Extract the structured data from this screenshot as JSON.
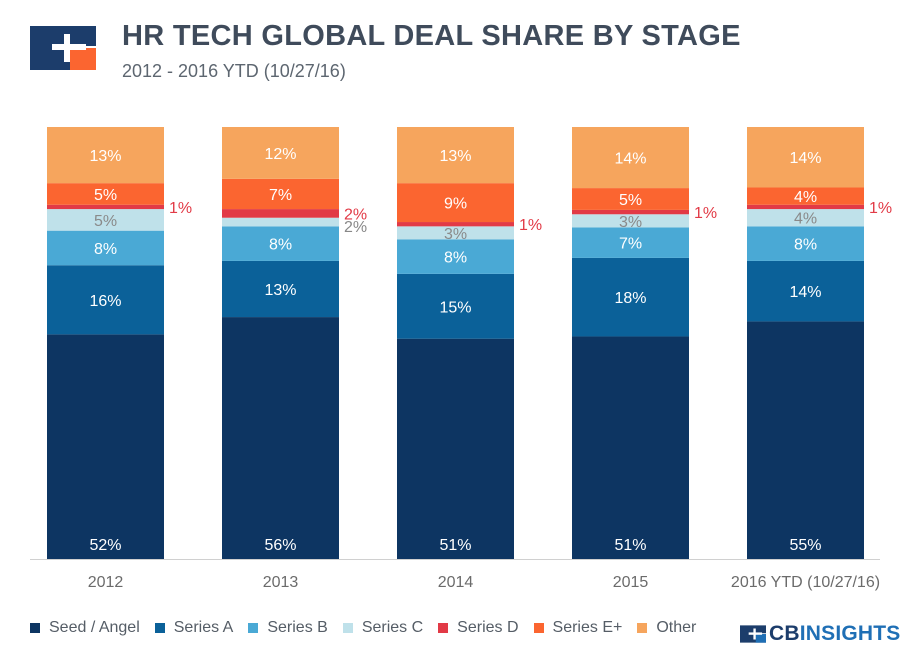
{
  "header": {
    "title": "HR TECH GLOBAL DEAL SHARE BY STAGE",
    "subtitle": "2012 - 2016 YTD (10/27/16)"
  },
  "brand": {
    "prefix": "CB",
    "suffix": "INSIGHTS"
  },
  "colors": {
    "Seed / Angel": "#0d3562",
    "Series A": "#0b6199",
    "Series B": "#4aa9d5",
    "Series C": "#bfe1ea",
    "Series D": "#e23a46",
    "Series E+": "#fb6530",
    "Other": "#f6a55d"
  },
  "chart_data": {
    "type": "bar",
    "stacked": true,
    "title": "HR TECH GLOBAL DEAL SHARE BY STAGE",
    "subtitle": "2012 - 2016 YTD (10/27/16)",
    "categories": [
      "2012",
      "2013",
      "2014",
      "2015",
      "2016 YTD (10/27/16)"
    ],
    "series": [
      {
        "name": "Seed / Angel",
        "values": [
          52,
          56,
          51,
          51,
          55
        ]
      },
      {
        "name": "Series A",
        "values": [
          16,
          13,
          15,
          18,
          14
        ]
      },
      {
        "name": "Series B",
        "values": [
          8,
          8,
          8,
          7,
          8
        ]
      },
      {
        "name": "Series C",
        "values": [
          5,
          2,
          3,
          3,
          4
        ]
      },
      {
        "name": "Series D",
        "values": [
          1,
          2,
          1,
          1,
          1
        ]
      },
      {
        "name": "Series E+",
        "values": [
          5,
          7,
          9,
          5,
          4
        ]
      },
      {
        "name": "Other",
        "values": [
          13,
          12,
          13,
          14,
          14
        ]
      }
    ],
    "value_suffix": "%",
    "ylim": [
      0,
      100
    ],
    "legend_position": "bottom",
    "grid": false
  }
}
